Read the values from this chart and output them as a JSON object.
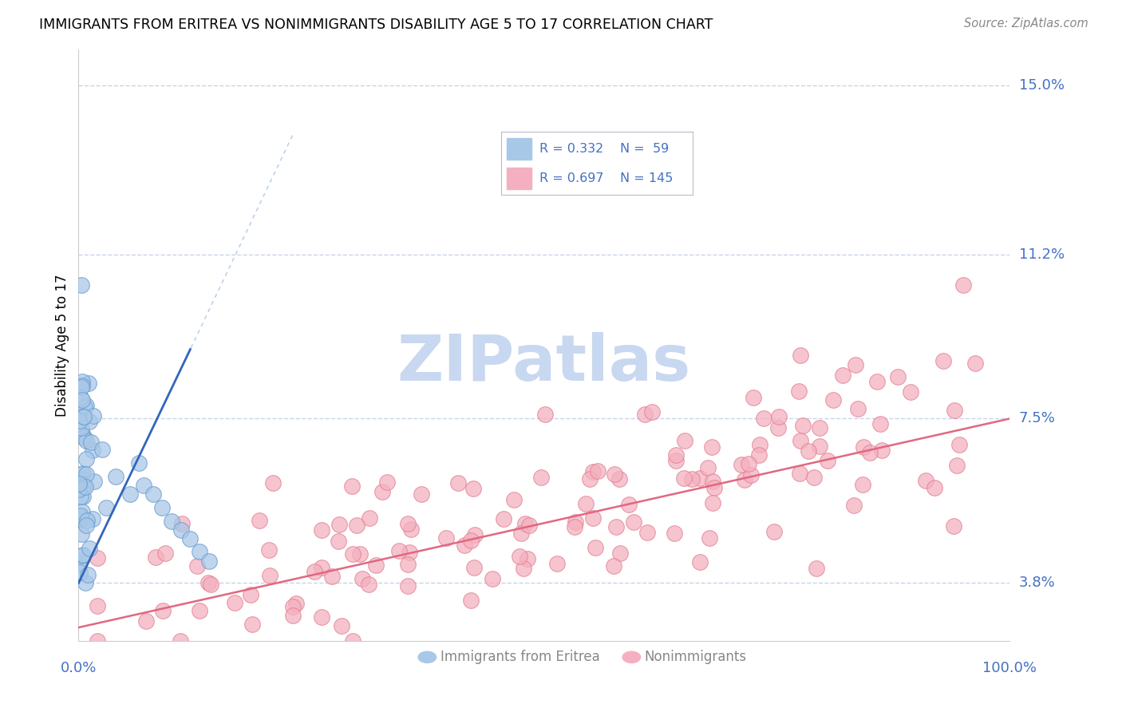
{
  "title": "IMMIGRANTS FROM ERITREA VS NONIMMIGRANTS DISABILITY AGE 5 TO 17 CORRELATION CHART",
  "source": "Source: ZipAtlas.com",
  "ylabel": "Disability Age 5 to 17",
  "xmin": 0.0,
  "xmax": 1.0,
  "ymin": 0.025,
  "ymax": 0.158,
  "yticks": [
    0.038,
    0.075,
    0.112,
    0.15
  ],
  "ytick_labels": [
    "3.8%",
    "7.5%",
    "11.2%",
    "15.0%"
  ],
  "blue_color": "#a8c8e8",
  "pink_color": "#f4b0c0",
  "blue_edge": "#6699cc",
  "pink_edge": "#e08090",
  "trend_blue": "#3366bb",
  "trend_pink": "#e06880",
  "grid_color": "#c8d4e8",
  "background": "#ffffff",
  "accent_color": "#4472c4",
  "watermark_color": "#c8d8f0",
  "legend_R_blue": "R = 0.332",
  "legend_N_blue": "N =  59",
  "legend_R_pink": "R = 0.697",
  "legend_N_pink": "N = 145",
  "bottom_label1": "Immigrants from Eritrea",
  "bottom_label2": "Nonimmigrants"
}
